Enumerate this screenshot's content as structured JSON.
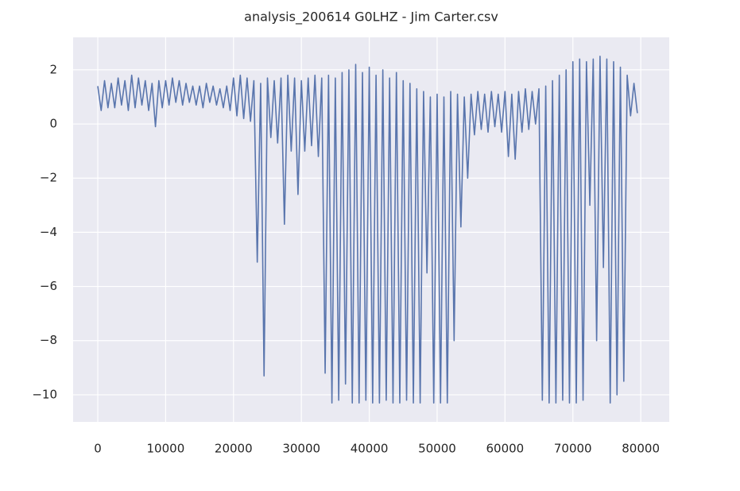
{
  "chart_data": {
    "type": "line",
    "title": "analysis_200614 G0LHZ - Jim Carter.csv",
    "color": "#5975ad",
    "grid": true,
    "xlim": [
      -3630,
      84200
    ],
    "ylim": [
      -11.0,
      3.2
    ],
    "xticks": [
      0,
      10000,
      20000,
      30000,
      40000,
      50000,
      60000,
      70000,
      80000
    ],
    "yticks": [
      2,
      0,
      {
        "value": -2,
        "label": "−2"
      },
      {
        "value": -4,
        "label": "−4"
      },
      {
        "value": -6,
        "label": "−6"
      },
      {
        "value": -8,
        "label": "−8"
      },
      {
        "value": -10,
        "label": "−10"
      }
    ],
    "x": [
      0,
      500,
      1000,
      1500,
      2000,
      2500,
      3000,
      3500,
      4000,
      4500,
      5000,
      5500,
      6000,
      6500,
      7000,
      7500,
      8000,
      8500,
      9000,
      9500,
      10000,
      10500,
      11000,
      11500,
      12000,
      12500,
      13000,
      13500,
      14000,
      14500,
      15000,
      15500,
      16000,
      16500,
      17000,
      17500,
      18000,
      18500,
      19000,
      19500,
      20000,
      20500,
      21000,
      21500,
      22000,
      22500,
      23000,
      23500,
      24000,
      24500,
      25000,
      25500,
      26000,
      26500,
      27000,
      27500,
      28000,
      28500,
      29000,
      29500,
      30000,
      30500,
      31000,
      31500,
      32000,
      32500,
      33000,
      33500,
      34000,
      34500,
      35000,
      35500,
      36000,
      36500,
      37000,
      37500,
      38000,
      38500,
      39000,
      39500,
      40000,
      40500,
      41000,
      41500,
      42000,
      42500,
      43000,
      43500,
      44000,
      44500,
      45000,
      45500,
      46000,
      46500,
      47000,
      47500,
      48000,
      48500,
      49000,
      49500,
      50000,
      50500,
      51000,
      51500,
      52000,
      52500,
      53000,
      53500,
      54000,
      54500,
      55000,
      55500,
      56000,
      56500,
      57000,
      57500,
      58000,
      58500,
      59000,
      59500,
      60000,
      60500,
      61000,
      61500,
      62000,
      62500,
      63000,
      63500,
      64000,
      64500,
      65000,
      65500,
      66000,
      66500,
      67000,
      67500,
      68000,
      68500,
      69000,
      69500,
      70000,
      70500,
      71000,
      71500,
      72000,
      72500,
      73000,
      73500,
      74000,
      74500,
      75000,
      75500,
      76000,
      76500,
      77000,
      77500,
      78000,
      78500,
      79000,
      79500
    ],
    "values": [
      1.4,
      0.5,
      1.6,
      0.6,
      1.5,
      0.6,
      1.7,
      0.7,
      1.6,
      0.5,
      1.8,
      0.6,
      1.7,
      0.7,
      1.6,
      0.5,
      1.5,
      -0.1,
      1.6,
      0.6,
      1.6,
      0.7,
      1.7,
      0.8,
      1.6,
      0.7,
      1.5,
      0.8,
      1.4,
      0.7,
      1.4,
      0.6,
      1.5,
      0.8,
      1.4,
      0.7,
      1.3,
      0.6,
      1.4,
      0.5,
      1.7,
      0.3,
      1.8,
      0.2,
      1.7,
      0.1,
      1.6,
      -5.1,
      1.5,
      -9.3,
      1.7,
      -0.5,
      1.6,
      -0.7,
      1.7,
      -3.7,
      1.8,
      -1.0,
      1.7,
      -2.6,
      1.6,
      -1.0,
      1.7,
      -0.8,
      1.8,
      -1.2,
      1.7,
      -9.2,
      1.8,
      -10.3,
      1.7,
      -10.2,
      1.9,
      -9.6,
      2.0,
      -10.3,
      2.2,
      -10.3,
      1.9,
      -10.2,
      2.1,
      -10.3,
      1.8,
      -10.3,
      2.0,
      -10.2,
      1.7,
      -10.3,
      1.9,
      -10.3,
      1.6,
      -10.2,
      1.5,
      -10.3,
      1.3,
      -10.3,
      1.2,
      -5.5,
      1.0,
      -10.3,
      1.1,
      -10.3,
      1.0,
      -10.3,
      1.2,
      -8.0,
      1.1,
      -3.8,
      1.0,
      -2.0,
      1.1,
      -0.4,
      1.2,
      -0.2,
      1.1,
      -0.3,
      1.2,
      -0.1,
      1.1,
      -0.3,
      1.2,
      -1.2,
      1.1,
      -1.3,
      1.2,
      -0.3,
      1.3,
      -0.2,
      1.2,
      0.0,
      1.3,
      -10.2,
      1.4,
      -10.3,
      1.6,
      -10.3,
      1.8,
      -10.2,
      2.0,
      -10.3,
      2.3,
      -10.3,
      2.4,
      -10.2,
      2.3,
      -3.0,
      2.4,
      -8.0,
      2.5,
      -5.3,
      2.4,
      -10.3,
      2.3,
      -10.0,
      2.1,
      -9.5,
      1.8,
      0.3,
      1.5,
      0.4
    ]
  }
}
